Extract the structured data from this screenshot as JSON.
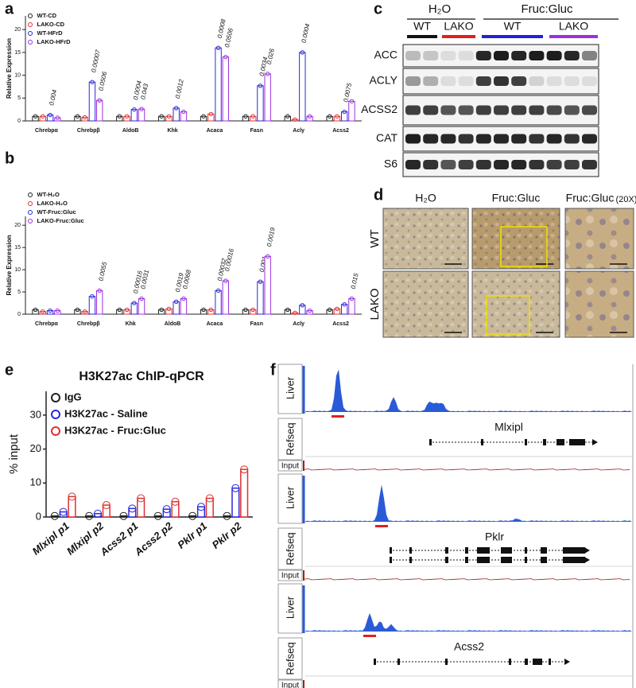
{
  "panel_labels": [
    "a",
    "b",
    "c",
    "d",
    "e",
    "f"
  ],
  "chart_data": [
    {
      "type": "bar",
      "ylabel": "Relative Expression",
      "categories": [
        "Chrebpα",
        "Chrebpβ",
        "AldoB",
        "Khk",
        "Acaca",
        "Fasn",
        "Acly",
        "Acss2"
      ],
      "ylim": [
        0,
        23
      ],
      "yticks": [
        0,
        5,
        10,
        15,
        20
      ],
      "series": [
        {
          "name": "WT-CD",
          "color": "#222222",
          "values": [
            1,
            1,
            1,
            1,
            1,
            1,
            1,
            1
          ]
        },
        {
          "name": "LAKO-CD",
          "color": "#e03030",
          "values": [
            1,
            0.8,
            1,
            1,
            1.5,
            1,
            0.3,
            1
          ]
        },
        {
          "name": "WT-HFrD",
          "color": "#2a2ad8",
          "values": [
            1.3,
            8.5,
            2.5,
            2.8,
            16,
            7.7,
            15,
            2
          ],
          "pvalues": [
            "0.004",
            "0.00007",
            "0.0004",
            "0.0012",
            "0.0008",
            "0.0034",
            "0.0004",
            "0.0075"
          ]
        },
        {
          "name": "LAKO-HFrD",
          "color": "#9b30e0",
          "values": [
            0.7,
            4.5,
            2.6,
            2,
            14,
            10.3,
            1,
            4.3
          ],
          "pvalues": [
            null,
            "0.0506",
            "0.043",
            null,
            "0.0506",
            "0.026",
            null,
            null
          ]
        }
      ]
    },
    {
      "type": "bar",
      "ylabel": "Relative  Expression",
      "categories": [
        "Chrebpα",
        "Chrebpβ",
        "Khk",
        "AldoB",
        "Acaca",
        "Fasn",
        "Acly",
        "Acss2"
      ],
      "ylim": [
        0,
        22
      ],
      "yticks": [
        0,
        5,
        10,
        15,
        20
      ],
      "series": [
        {
          "name": "WT-H₂O",
          "color": "#222222",
          "values": [
            1,
            1,
            1,
            1,
            1,
            1,
            1,
            1
          ]
        },
        {
          "name": "LAKO-H₂O",
          "color": "#e03030",
          "values": [
            0.6,
            0.6,
            1,
            1.2,
            1,
            1,
            0.3,
            1.2
          ]
        },
        {
          "name": "WT-Fruc:Gluc",
          "color": "#2a2ad8",
          "values": [
            0.8,
            4,
            2.5,
            2.8,
            5.3,
            7.3,
            2,
            2.2
          ],
          "pvalues": [
            null,
            null,
            "0.00016",
            "0.0019",
            "0.00032",
            "0.001",
            null,
            null
          ]
        },
        {
          "name": "LAKO-Fruc:Gluc",
          "color": "#9b30e0",
          "values": [
            0.8,
            5.3,
            3.5,
            3.5,
            7.5,
            13,
            0.8,
            3.5
          ],
          "pvalues": [
            null,
            "0.0055",
            "0.0031",
            "0.0068",
            "0.00016",
            "0.0019",
            null,
            "0.015"
          ]
        }
      ]
    },
    {
      "type": "bar",
      "title": "H3K27ac ChIP-qPCR",
      "ylabel": "% input",
      "categories": [
        "Mlxipl p1",
        "Mlxipl p2",
        "Acss2 p1",
        "Acss2 p2",
        "Pklr p1",
        "Pklr p2"
      ],
      "ylim": [
        0,
        37
      ],
      "yticks": [
        0,
        10,
        20,
        30
      ],
      "series": [
        {
          "name": "IgG",
          "color": "#222222",
          "values": [
            0.3,
            0.3,
            0.3,
            0.3,
            0.3,
            0.3
          ]
        },
        {
          "name": "H3K27ac - Saline",
          "color": "#2a2ad8",
          "values": [
            1.5,
            1,
            2.5,
            2.3,
            3,
            8.5
          ]
        },
        {
          "name": "H3K27ac - Fruc:Gluc",
          "color": "#e03030",
          "values": [
            6,
            3.5,
            5.5,
            4.5,
            5.5,
            14
          ]
        }
      ]
    }
  ],
  "blot": {
    "groups": [
      "H₂O",
      "Fruc:Gluc"
    ],
    "lanes": [
      "WT",
      "LAKO",
      "WT",
      "LAKO"
    ],
    "lane_colors": [
      "#111111",
      "#e02020",
      "#2020e0",
      "#9b30e0"
    ],
    "proteins": [
      "ACC",
      "ACLY",
      "ACSS2",
      "CAT",
      "S6"
    ]
  },
  "histology": {
    "columns": [
      "H₂O",
      "Fruc:Gluc",
      "Fruc:Gluc"
    ],
    "zoom": "(20X)",
    "rows": [
      "WT",
      "LAKO"
    ]
  },
  "tracks": {
    "track_labels": [
      "Liver",
      "Refseq",
      "Input"
    ],
    "genes": [
      "Mlxipl",
      "Pklr",
      "Acss2"
    ]
  }
}
